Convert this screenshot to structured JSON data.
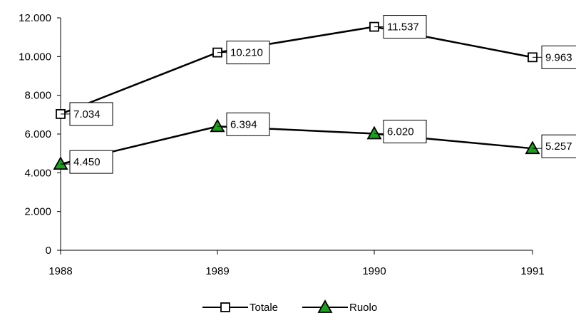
{
  "chart_data": {
    "type": "line",
    "title": "",
    "xlabel": "",
    "ylabel": "",
    "categories": [
      "1988",
      "1989",
      "1990",
      "1991"
    ],
    "ylim": [
      0,
      12000
    ],
    "yticks": [
      0,
      2000,
      4000,
      6000,
      8000,
      10000,
      12000
    ],
    "ytick_labels": [
      "0",
      "2.000",
      "4.000",
      "6.000",
      "8.000",
      "10.000",
      "12.000"
    ],
    "grid": false,
    "legend_position": "bottom",
    "series": [
      {
        "name": "Totale",
        "values": [
          7034,
          10210,
          11537,
          9963
        ],
        "labels": [
          "7.034",
          "10.210",
          "11.537",
          "9.963"
        ],
        "marker": "square",
        "marker_color": "#ffffff",
        "line_color": "#000000"
      },
      {
        "name": "Ruolo",
        "values": [
          4450,
          6394,
          6020,
          5257
        ],
        "labels": [
          "4.450",
          "6.394",
          "6.020",
          "5.257"
        ],
        "marker": "triangle",
        "marker_color": "#1e9e1e",
        "line_color": "#000000"
      }
    ]
  }
}
